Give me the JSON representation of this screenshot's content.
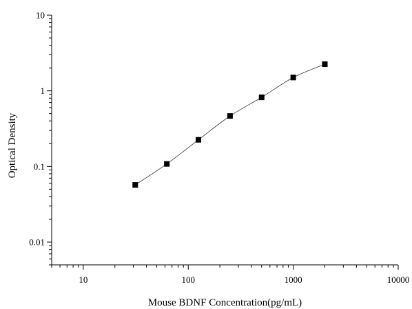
{
  "chart_data": {
    "type": "scatter",
    "title": "",
    "xlabel": "Mouse BDNF Concentration(pg/mL)",
    "ylabel": "Optical Density",
    "xscale": "log",
    "yscale": "log",
    "xlim": [
      5,
      10000
    ],
    "ylim": [
      0.005,
      10
    ],
    "grid": false,
    "x_ticks": [
      10,
      100,
      1000,
      10000
    ],
    "x_tick_labels": [
      "10",
      "100",
      "1000",
      "10000"
    ],
    "y_ticks": [
      0.01,
      0.1,
      1,
      10
    ],
    "y_tick_labels": [
      "0.01",
      "0.1",
      "1",
      "10"
    ],
    "marker": "square",
    "marker_color": "#000000",
    "curve_color": "#333333",
    "series": [
      {
        "points": [
          {
            "x": 31.25,
            "y": 0.057
          },
          {
            "x": 62.5,
            "y": 0.108
          },
          {
            "x": 125,
            "y": 0.225
          },
          {
            "x": 250,
            "y": 0.465
          },
          {
            "x": 500,
            "y": 0.82
          },
          {
            "x": 1000,
            "y": 1.5
          },
          {
            "x": 2000,
            "y": 2.25
          }
        ]
      }
    ]
  }
}
